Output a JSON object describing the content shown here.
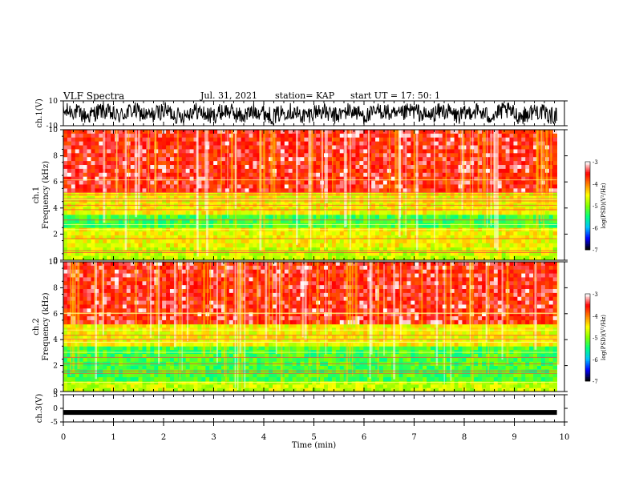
{
  "header": {
    "title": "VLF Spectra",
    "date": "Jul. 31, 2021",
    "station": "station= KAP",
    "start": "start UT =  17: 50: 1"
  },
  "chart_data": [
    {
      "type": "line",
      "panel": "ch1-waveform",
      "ylabel": "ch.1(V)",
      "ylim": [
        -10,
        10
      ],
      "yticks": [
        "10",
        "-10"
      ],
      "x_range_min": [
        0,
        9.85
      ]
    },
    {
      "type": "heatmap",
      "panel": "ch1-spectrogram",
      "ylabel_line1": "ch.1",
      "ylabel_line2": "Frequency (kHz)",
      "ylim": [
        0,
        10
      ],
      "yticks": [
        "0",
        "2",
        "4",
        "6",
        "8",
        "10"
      ],
      "colorbar": {
        "label": "log(PSD)(V²/Hz)",
        "range": [
          -7,
          -3
        ],
        "ticks": [
          "-3",
          "-4",
          "-5",
          "-6",
          "-7"
        ],
        "colors": [
          "#000000",
          "#0000ff",
          "#00c0ff",
          "#00ff80",
          "#80ff00",
          "#ffff00",
          "#ff8000",
          "#ff0000",
          "#ffffff"
        ]
      },
      "bands_khz": [
        {
          "from": 0,
          "to": 1.0,
          "level": "green-yellow"
        },
        {
          "from": 1.0,
          "to": 2.5,
          "level": "yellow-green"
        },
        {
          "from": 2.5,
          "to": 3.5,
          "level": "green-cyan"
        },
        {
          "from": 3.5,
          "to": 5.2,
          "level": "yellow-green"
        },
        {
          "from": 5.2,
          "to": 10,
          "level": "red"
        }
      ]
    },
    {
      "type": "heatmap",
      "panel": "ch2-spectrogram",
      "ylabel_line1": "ch.2",
      "ylabel_line2": "Frequency (kHz)",
      "ylim": [
        0,
        10
      ],
      "yticks": [
        "0",
        "2",
        "4",
        "6",
        "8",
        "10"
      ],
      "colorbar": {
        "label": "log(PSD)(V²/Hz)",
        "range": [
          -7,
          -3
        ],
        "ticks": [
          "-3",
          "-4",
          "-5",
          "-6",
          "-7"
        ],
        "colors": [
          "#000000",
          "#0000ff",
          "#00c0ff",
          "#00ff80",
          "#80ff00",
          "#ffff00",
          "#ff8000",
          "#ff0000",
          "#ffffff"
        ]
      },
      "bands_khz": [
        {
          "from": 0,
          "to": 0.8,
          "level": "green-yellow"
        },
        {
          "from": 0.8,
          "to": 2.0,
          "level": "green-cyan"
        },
        {
          "from": 2.0,
          "to": 3.5,
          "level": "green-cyan"
        },
        {
          "from": 3.5,
          "to": 5.2,
          "level": "yellow-green"
        },
        {
          "from": 5.2,
          "to": 10,
          "level": "red"
        }
      ]
    },
    {
      "type": "line",
      "panel": "ch3-waveform",
      "ylabel": "ch.3(V)",
      "ylim": [
        -5,
        5
      ],
      "yticks": [
        "5",
        "0",
        "-5"
      ],
      "x_range_min": [
        0,
        9.85
      ],
      "level_v": -1.5
    }
  ],
  "x_axis": {
    "label": "Time (min)",
    "range": [
      0,
      10
    ],
    "ticks": [
      "0",
      "1",
      "2",
      "3",
      "4",
      "5",
      "6",
      "7",
      "8",
      "9",
      "10"
    ]
  }
}
